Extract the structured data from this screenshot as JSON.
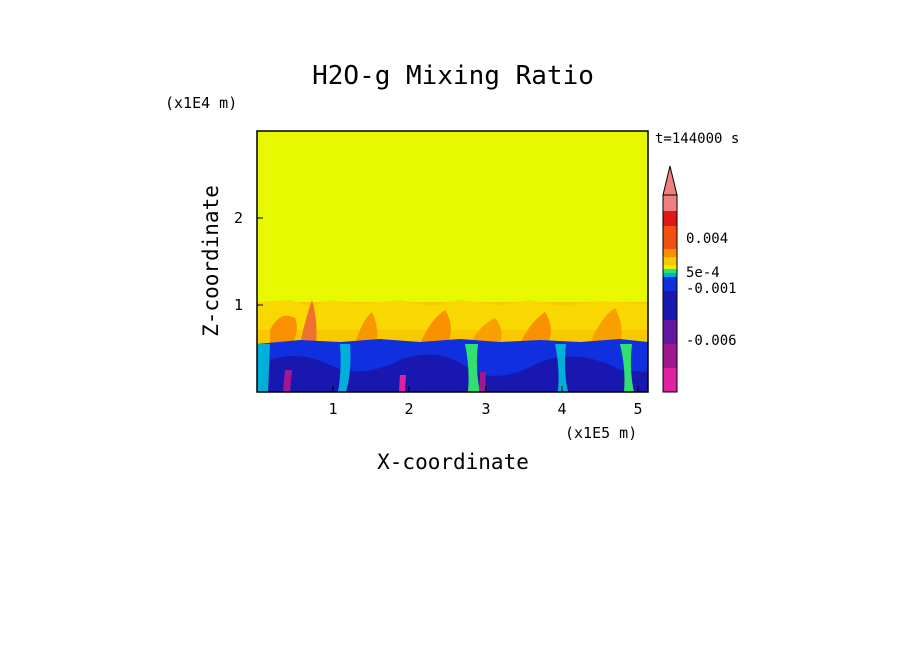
{
  "chart_data": {
    "type": "heatmap",
    "title": "H2O-g Mixing Ratio",
    "xlabel": "X-coordinate",
    "ylabel": "Z-coordinate",
    "x_unit_label": "(x1E5 m)",
    "y_unit_label": "(x1E4 m)",
    "time_label": "t=144000 s",
    "xlim": [
      0,
      5.12
    ],
    "ylim": [
      0,
      3.0
    ],
    "x_ticks": [
      "1",
      "2",
      "3",
      "4",
      "5"
    ],
    "y_ticks": [
      "1",
      "2"
    ],
    "field_description": {
      "upper_uniform_top": 1.05,
      "lower_layer_top": 0.6
    },
    "colorbar": {
      "colors": [
        "#e020a0",
        "#a01890",
        "#6018a0",
        "#1818b0",
        "#1030e0",
        "#00b0d8",
        "#30e070",
        "#e8f000",
        "#f8c800",
        "#f89000",
        "#f05010",
        "#e01818",
        "#f08080"
      ],
      "labels": [
        "0.004",
        "5e-4",
        "-0.001",
        "-0.006"
      ],
      "extend": "max"
    }
  }
}
